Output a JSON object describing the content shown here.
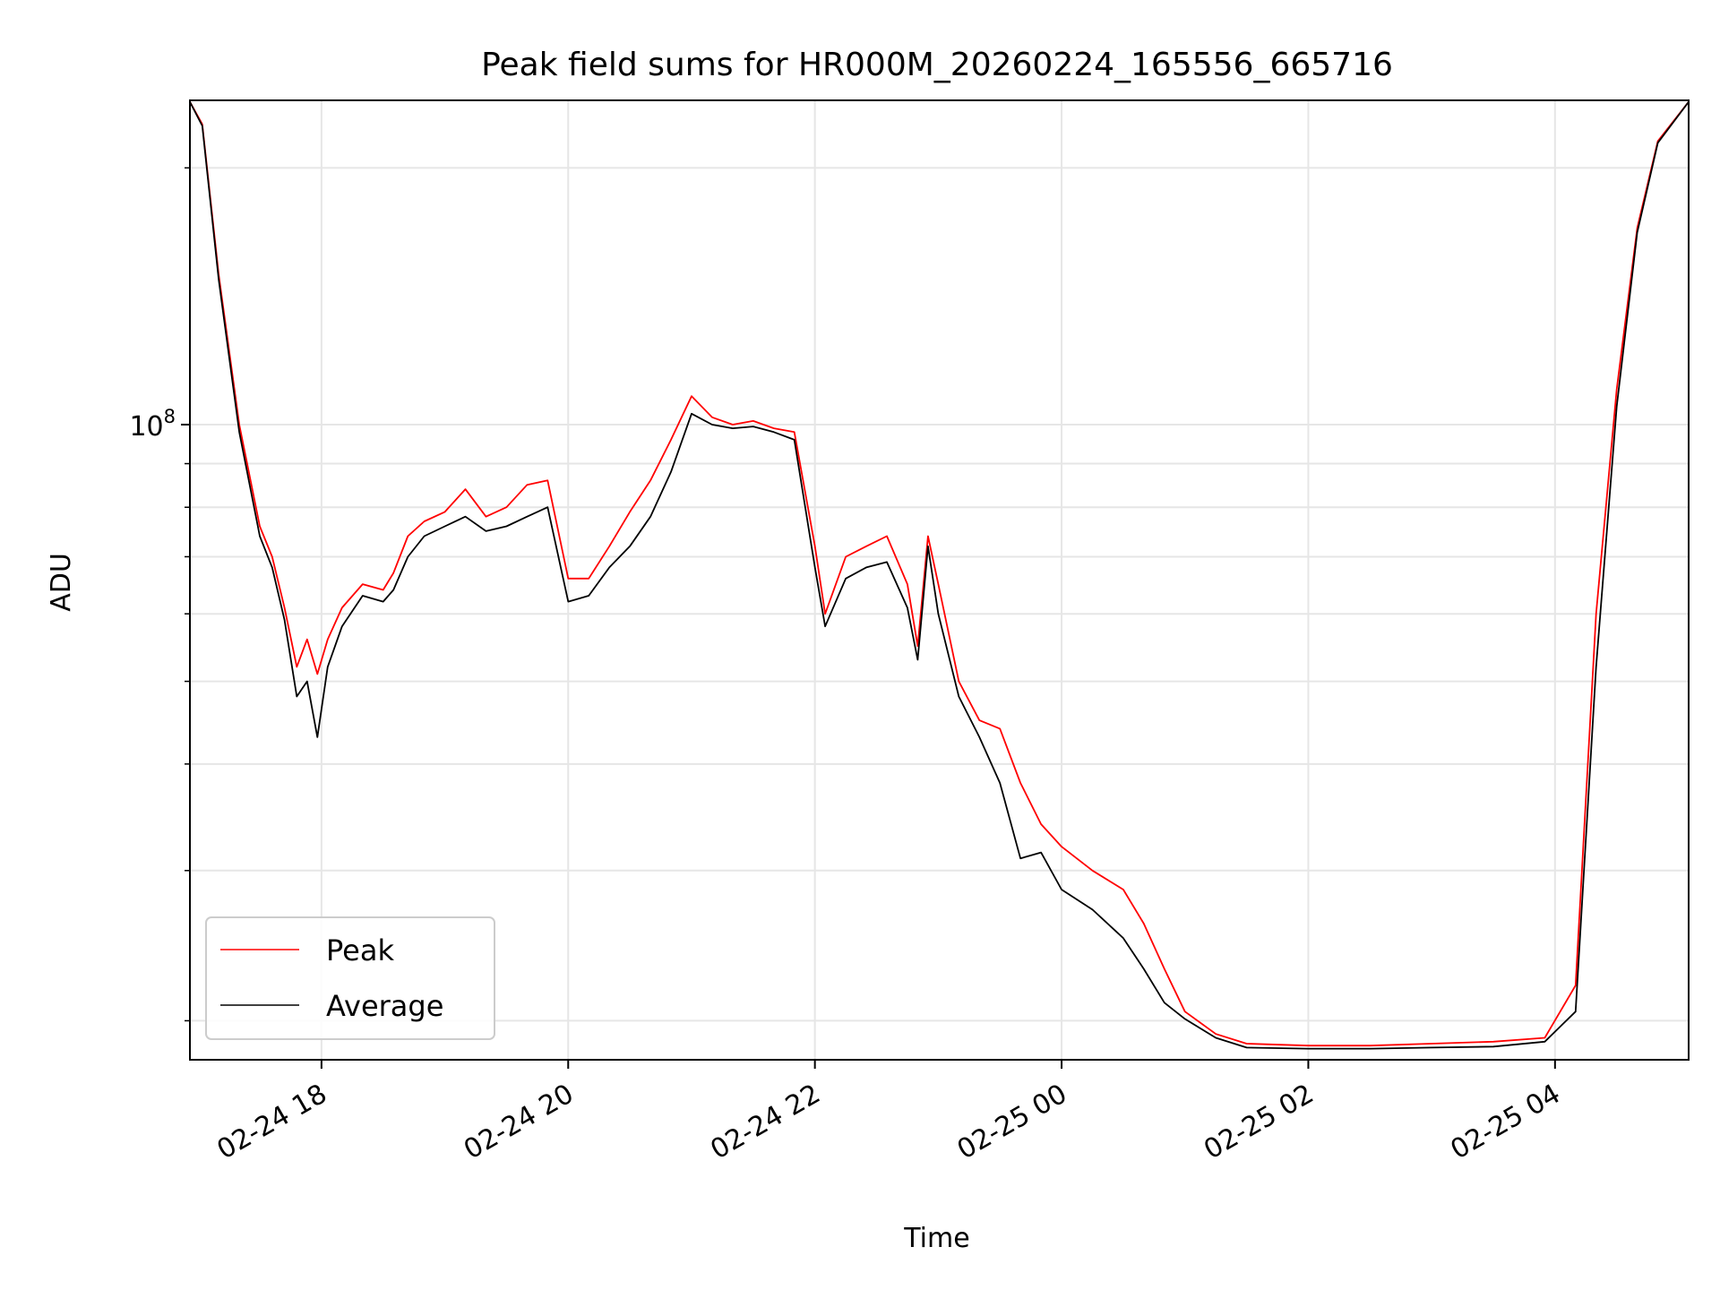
{
  "colors": {
    "peak": "#ff0000",
    "average": "#000000",
    "grid": "#e6e6e6",
    "axis": "#000000",
    "background": "#ffffff"
  },
  "chart_data": {
    "type": "line",
    "title": "Peak field sums for HR000M_20260224_165556_665716",
    "xlabel": "Time",
    "ylabel": "ADU",
    "yscale": "log",
    "y_major_tick_label": "10",
    "y_major_tick_exponent": "8",
    "y_major_tick_value": 100000000,
    "y_minor_ticks": [
      20000000,
      30000000,
      40000000,
      50000000,
      60000000,
      70000000,
      80000000,
      90000000,
      200000000
    ],
    "ylim": [
      18000000,
      240000000
    ],
    "xlim": [
      "2026-02-24 16:56",
      "2026-02-25 05:05"
    ],
    "x_ticks": [
      "2026-02-24 18:00",
      "2026-02-24 20:00",
      "2026-02-24 22:00",
      "2026-02-25 00:00",
      "2026-02-25 02:00",
      "2026-02-25 04:00"
    ],
    "x_tick_labels": [
      "02-24 18",
      "02-24 20",
      "02-24 22",
      "02-25 00",
      "02-25 02",
      "02-25 04"
    ],
    "grid": true,
    "legend_position": "lower-left",
    "series": [
      {
        "name": "Peak",
        "color": "#ff0000",
        "x": [
          "2026-02-24 16:56",
          "2026-02-24 17:02",
          "2026-02-24 17:10",
          "2026-02-24 17:20",
          "2026-02-24 17:30",
          "2026-02-24 17:36",
          "2026-02-24 17:42",
          "2026-02-24 17:48",
          "2026-02-24 17:53",
          "2026-02-24 17:58",
          "2026-02-24 18:03",
          "2026-02-24 18:10",
          "2026-02-24 18:20",
          "2026-02-24 18:30",
          "2026-02-24 18:35",
          "2026-02-24 18:42",
          "2026-02-24 18:50",
          "2026-02-24 19:00",
          "2026-02-24 19:10",
          "2026-02-24 19:20",
          "2026-02-24 19:30",
          "2026-02-24 19:40",
          "2026-02-24 19:50",
          "2026-02-24 20:00",
          "2026-02-24 20:10",
          "2026-02-24 20:20",
          "2026-02-24 20:30",
          "2026-02-24 20:40",
          "2026-02-24 20:50",
          "2026-02-24 21:00",
          "2026-02-24 21:10",
          "2026-02-24 21:20",
          "2026-02-24 21:30",
          "2026-02-24 21:40",
          "2026-02-24 21:50",
          "2026-02-24 22:00",
          "2026-02-24 22:05",
          "2026-02-24 22:15",
          "2026-02-24 22:25",
          "2026-02-24 22:35",
          "2026-02-24 22:45",
          "2026-02-24 22:50",
          "2026-02-24 22:55",
          "2026-02-24 23:00",
          "2026-02-24 23:10",
          "2026-02-24 23:20",
          "2026-02-24 23:30",
          "2026-02-24 23:40",
          "2026-02-24 23:50",
          "2026-02-25 00:00",
          "2026-02-25 00:15",
          "2026-02-25 00:30",
          "2026-02-25 00:40",
          "2026-02-25 00:50",
          "2026-02-25 01:00",
          "2026-02-25 01:15",
          "2026-02-25 01:30",
          "2026-02-25 02:00",
          "2026-02-25 02:30",
          "2026-02-25 03:00",
          "2026-02-25 03:30",
          "2026-02-25 03:55",
          "2026-02-25 04:10",
          "2026-02-25 04:20",
          "2026-02-25 04:30",
          "2026-02-25 04:40",
          "2026-02-25 04:50",
          "2026-02-25 05:05"
        ],
        "values": [
          239000000,
          225000000,
          150000000,
          100000000,
          76000000,
          70000000,
          61000000,
          52000000,
          56000000,
          51000000,
          56000000,
          61000000,
          65000000,
          64000000,
          67000000,
          74000000,
          77000000,
          79000000,
          84000000,
          78000000,
          80000000,
          85000000,
          86000000,
          66000000,
          66000000,
          72000000,
          79000000,
          86000000,
          96000000,
          108000000,
          102000000,
          100000000,
          101000000,
          99000000,
          98000000,
          72000000,
          60000000,
          70000000,
          72000000,
          74000000,
          65000000,
          55000000,
          74000000,
          65000000,
          50000000,
          45000000,
          44000000,
          38000000,
          34000000,
          32000000,
          30000000,
          28500000,
          26000000,
          23000000,
          20500000,
          19300000,
          18800000,
          18700000,
          18700000,
          18800000,
          18900000,
          19100000,
          22000000,
          60000000,
          110000000,
          170000000,
          215000000,
          239000000
        ]
      },
      {
        "name": "Average",
        "color": "#000000",
        "x": [
          "2026-02-24 16:56",
          "2026-02-24 17:02",
          "2026-02-24 17:10",
          "2026-02-24 17:20",
          "2026-02-24 17:30",
          "2026-02-24 17:36",
          "2026-02-24 17:42",
          "2026-02-24 17:48",
          "2026-02-24 17:53",
          "2026-02-24 17:58",
          "2026-02-24 18:03",
          "2026-02-24 18:10",
          "2026-02-24 18:20",
          "2026-02-24 18:30",
          "2026-02-24 18:35",
          "2026-02-24 18:42",
          "2026-02-24 18:50",
          "2026-02-24 19:00",
          "2026-02-24 19:10",
          "2026-02-24 19:20",
          "2026-02-24 19:30",
          "2026-02-24 19:40",
          "2026-02-24 19:50",
          "2026-02-24 20:00",
          "2026-02-24 20:10",
          "2026-02-24 20:20",
          "2026-02-24 20:30",
          "2026-02-24 20:40",
          "2026-02-24 20:50",
          "2026-02-24 21:00",
          "2026-02-24 21:10",
          "2026-02-24 21:20",
          "2026-02-24 21:30",
          "2026-02-24 21:40",
          "2026-02-24 21:50",
          "2026-02-24 22:00",
          "2026-02-24 22:05",
          "2026-02-24 22:15",
          "2026-02-24 22:25",
          "2026-02-24 22:35",
          "2026-02-24 22:45",
          "2026-02-24 22:50",
          "2026-02-24 22:55",
          "2026-02-24 23:00",
          "2026-02-24 23:10",
          "2026-02-24 23:20",
          "2026-02-24 23:30",
          "2026-02-24 23:40",
          "2026-02-24 23:50",
          "2026-02-25 00:00",
          "2026-02-25 00:15",
          "2026-02-25 00:30",
          "2026-02-25 00:40",
          "2026-02-25 00:50",
          "2026-02-25 01:00",
          "2026-02-25 01:15",
          "2026-02-25 01:30",
          "2026-02-25 02:00",
          "2026-02-25 02:30",
          "2026-02-25 03:00",
          "2026-02-25 03:30",
          "2026-02-25 03:55",
          "2026-02-25 04:10",
          "2026-02-25 04:20",
          "2026-02-25 04:30",
          "2026-02-25 04:40",
          "2026-02-25 04:50",
          "2026-02-25 05:05"
        ],
        "values": [
          239000000,
          224000000,
          148000000,
          98000000,
          74000000,
          68000000,
          59000000,
          48000000,
          50000000,
          43000000,
          52000000,
          58000000,
          63000000,
          62000000,
          64000000,
          70000000,
          74000000,
          76000000,
          78000000,
          75000000,
          76000000,
          78000000,
          80000000,
          62000000,
          63000000,
          68000000,
          72000000,
          78000000,
          88000000,
          103000000,
          100000000,
          99000000,
          99500000,
          98000000,
          96000000,
          68000000,
          58000000,
          66000000,
          68000000,
          69000000,
          61000000,
          53000000,
          72000000,
          60000000,
          48000000,
          43000000,
          38000000,
          31000000,
          31500000,
          28500000,
          27000000,
          25000000,
          23000000,
          21000000,
          20100000,
          19100000,
          18600000,
          18550000,
          18550000,
          18600000,
          18650000,
          18900000,
          20500000,
          52000000,
          105000000,
          168000000,
          214000000,
          239000000
        ]
      }
    ]
  }
}
